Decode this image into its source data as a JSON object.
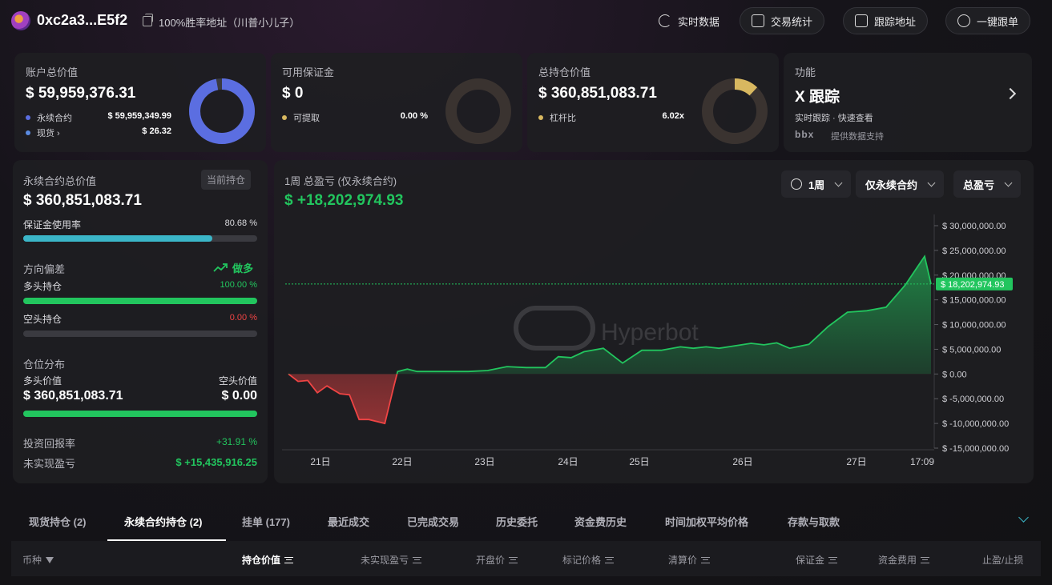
{
  "header": {
    "address": "0xc2a3...E5f2",
    "tag": "100%胜率地址（川普小儿子）",
    "buttons": [
      "实时数据",
      "交易统计",
      "跟踪地址",
      "一键跟单"
    ]
  },
  "cards": {
    "account": {
      "title": "账户总价值",
      "value": "$ 59,959,376.31",
      "rows": [
        {
          "label": "永续合约",
          "value": "$ 59,959,349.99",
          "color": "#5b6ee1"
        },
        {
          "label": "现货 ›",
          "value": "$ 26.32",
          "color": "#5b8be1"
        }
      ],
      "donut_fraction": 0.97,
      "donut_color": "#5b6ee1"
    },
    "margin": {
      "title": "可用保证金",
      "value": "$ 0",
      "row_label": "可提取",
      "row_value": "0.00 %",
      "dot_color": "#d8b860",
      "donut_fraction": 0.0
    },
    "position": {
      "title": "总持仓价值",
      "value": "$ 360,851,083.71",
      "row_label": "杠杆比",
      "row_value": "6.02x",
      "dot_color": "#d8b860",
      "donut_fraction": 0.12,
      "donut_color": "#d8b860"
    },
    "feature": {
      "title": "功能",
      "value": "X 跟踪",
      "desc": "实时跟踪 · 快速查看",
      "logo_text": "bbx",
      "support": "提供数据支持"
    }
  },
  "left_panel": {
    "perp_title": "永续合约总价值",
    "badge": "当前持仓",
    "perp_value": "$ 360,851,083.71",
    "margin_usage_label": "保证金使用率",
    "margin_usage_value": "80.68 %",
    "margin_usage_fraction": 0.8068,
    "direction_label": "方向偏差",
    "direction_value": "做多",
    "long_label": "多头持仓",
    "long_value": "100.00 %",
    "long_fraction": 1.0,
    "short_label": "空头持仓",
    "short_value": "0.00 %",
    "short_fraction": 0.0,
    "dist_label": "仓位分布",
    "long_val_label": "多头价值",
    "short_val_label": "空头价值",
    "long_val": "$ 360,851,083.71",
    "short_val": "$ 0.00",
    "roi_label": "投资回报率",
    "roi_value": "+31.91 %",
    "upnl_label": "未实现盈亏",
    "upnl_value": "$ +15,435,916.25"
  },
  "chart_panel": {
    "title": "1周 总盈亏 (仅永续合约)",
    "total": "$ +18,202,974.93",
    "selectors": [
      "1周",
      "仅永续合约",
      "总盈亏"
    ],
    "watermark": "Hyperbot",
    "current_label": "$ 18,202,974.93"
  },
  "chart_data": {
    "type": "area",
    "x_ticks": [
      "21日",
      "22日",
      "23日",
      "24日",
      "25日",
      "26日",
      "27日",
      "17:09"
    ],
    "y_ticks": [
      "$ 30,000,000.00",
      "$ 25,000,000.00",
      "$ 20,000,000.00",
      "$ 15,000,000.00",
      "$ 10,000,000.00",
      "$ 5,000,000.00",
      "$ 0.00",
      "$ -5,000,000.00",
      "$ -10,000,000.00",
      "$ -15,000,000.00"
    ],
    "ylim": [
      -15000000,
      30000000
    ],
    "xlim": [
      0,
      100
    ],
    "x": [
      0,
      1.5,
      3,
      4.5,
      6,
      8,
      9.5,
      11,
      12.5,
      15,
      16.5,
      17,
      18.5,
      20,
      21.5,
      23,
      25,
      28,
      31,
      34,
      37,
      40,
      42,
      44,
      46,
      49,
      52,
      55,
      58,
      61,
      63,
      65,
      67,
      70,
      72,
      74,
      76,
      78,
      81,
      84,
      87,
      90,
      93,
      96,
      99,
      100
    ],
    "y": [
      0,
      -1500000,
      -1300000,
      -3800000,
      -2400000,
      -4000000,
      -4200000,
      -9200000,
      -9200000,
      -10000000,
      -2000000,
      500000,
      1000000,
      500000,
      500000,
      500000,
      500000,
      500000,
      700000,
      1500000,
      1300000,
      1300000,
      3500000,
      3300000,
      4500000,
      5200000,
      2200000,
      4800000,
      4800000,
      5500000,
      5200000,
      5500000,
      5200000,
      5800000,
      6200000,
      5900000,
      6300000,
      5200000,
      6000000,
      9600000,
      12500000,
      12800000,
      13500000,
      18000000,
      23800000,
      18202975
    ]
  },
  "tabs": {
    "items": [
      "现货持仓 (2)",
      "永续合约持仓 (2)",
      "挂单 (177)",
      "最近成交",
      "已完成交易",
      "历史委托",
      "资金费历史",
      "时间加权平均价格",
      "存款与取款"
    ],
    "columns": [
      "币种",
      "持仓价值",
      "未实现盈亏",
      "开盘价",
      "标记价格",
      "清算价",
      "保证金",
      "资金费用",
      "止盈/止损"
    ]
  }
}
